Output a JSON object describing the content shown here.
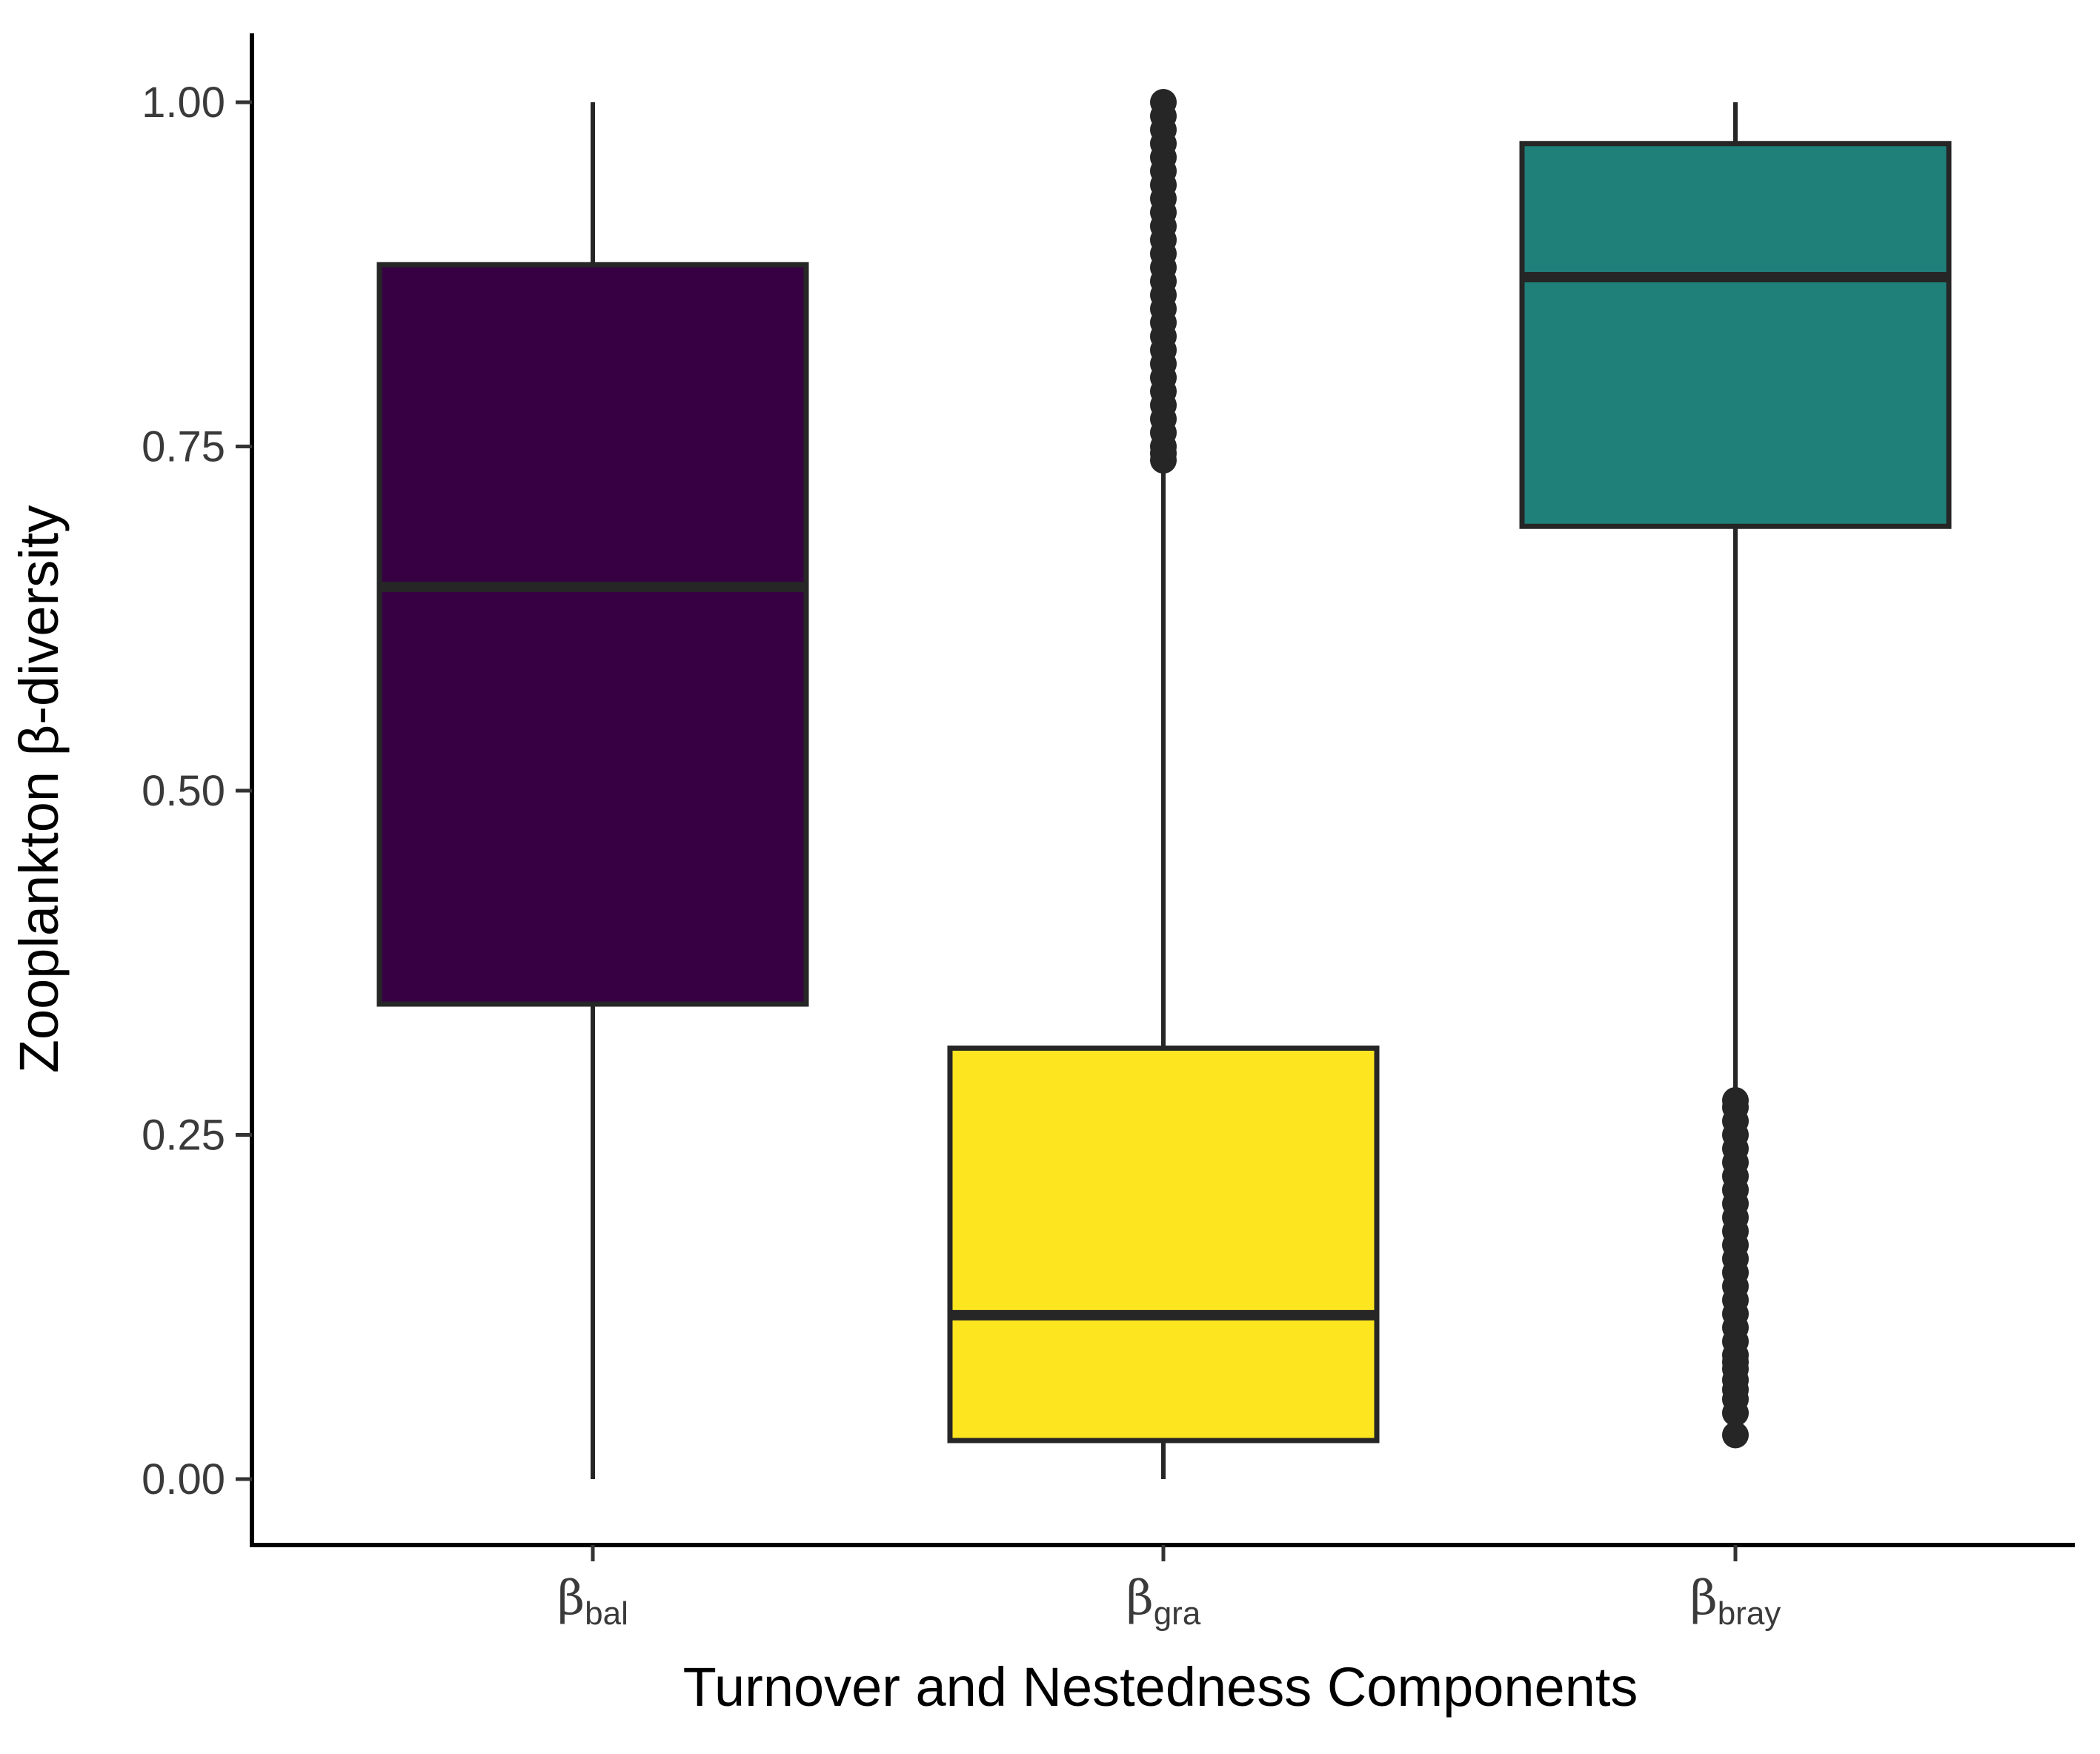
{
  "chart_data": {
    "type": "box",
    "xlabel": "Turnover and Nestedness Components",
    "ylabel": "Zooplankton β-diversity",
    "ylim": [
      -0.09,
      1.05
    ],
    "yticks": [
      0.0,
      0.25,
      0.5,
      0.75,
      1.0
    ],
    "ytick_labels": [
      "0.00",
      "0.25",
      "0.50",
      "0.75",
      "1.00"
    ],
    "grid": false,
    "legend": "none",
    "categories": [
      {
        "symbol": "β",
        "subscript": "bal"
      },
      {
        "symbol": "β",
        "subscript": "gra"
      },
      {
        "symbol": "β",
        "subscript": "bray"
      }
    ],
    "boxes": [
      {
        "category": "βbal",
        "whisker_low": 0.0,
        "q1": 0.345,
        "median": 0.648,
        "q3": 0.882,
        "whisker_high": 1.0,
        "fill": "#360042",
        "outliers": []
      },
      {
        "category": "βgra",
        "whisker_low": 0.0,
        "q1": 0.028,
        "median": 0.119,
        "q3": 0.313,
        "whisker_high": 0.74,
        "fill": "#fde620",
        "outliers": [
          0.74,
          0.745,
          0.75,
          0.76,
          0.77,
          0.78,
          0.79,
          0.8,
          0.81,
          0.82,
          0.83,
          0.84,
          0.85,
          0.86,
          0.87,
          0.88,
          0.89,
          0.9,
          0.91,
          0.92,
          0.93,
          0.94,
          0.95,
          0.96,
          0.97,
          0.98,
          0.99,
          1.0
        ]
      },
      {
        "category": "βbray",
        "whisker_low": 0.28,
        "q1": 0.692,
        "median": 0.873,
        "q3": 0.97,
        "whisker_high": 1.0,
        "fill": "#1f7f79",
        "outliers": [
          0.032,
          0.048,
          0.058,
          0.065,
          0.072,
          0.08,
          0.085,
          0.09,
          0.1,
          0.11,
          0.12,
          0.13,
          0.14,
          0.15,
          0.16,
          0.17,
          0.18,
          0.19,
          0.2,
          0.21,
          0.22,
          0.23,
          0.24,
          0.25,
          0.26,
          0.27,
          0.275
        ]
      }
    ],
    "box_stroke": "#262626",
    "axis_color": "#000000"
  }
}
